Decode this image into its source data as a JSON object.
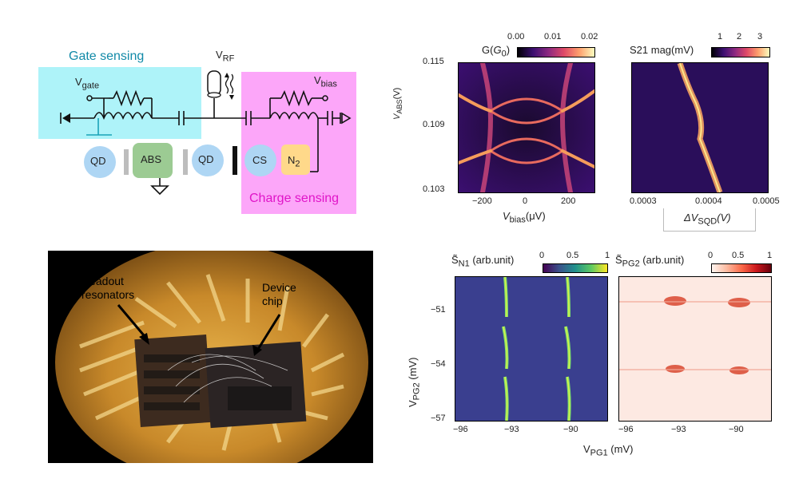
{
  "schematic": {
    "gate_sensing": "Gate sensing",
    "charge_sensing": "Charge sensing",
    "v_rf": "V",
    "v_rf_sub": "RF",
    "v_gate": "V",
    "v_gate_sub": "gate",
    "v_bias": "V",
    "v_bias_sub": "bias",
    "blocks": {
      "qd1": "QD",
      "abs": "ABS",
      "qd2": "QD",
      "cs": "CS",
      "n2": "N",
      "n2_sub": "2"
    },
    "colors": {
      "gate": "#aef3f9",
      "charge": "#fca6f9",
      "qd": "#aed6f4",
      "abs": "#9ccb93",
      "n2": "#ffd98a"
    }
  },
  "photo": {
    "label_readout": "Readout\nresonators",
    "label_device": "Device\nchip"
  },
  "plot_a": {
    "colorbar_label": "G(",
    "colorbar_label_g": "G",
    "colorbar_label_sub": "0",
    "colorbar_label_end": ")",
    "colorbar_ticks": [
      "0.00",
      "0.01",
      "0.02"
    ],
    "ylabel": "V",
    "ylabel_sub": "ABS",
    "ylabel_unit": "(V)",
    "xlabel": "V",
    "xlabel_sub": "bias",
    "xlabel_unit": "(μV)",
    "yticks": [
      "0.115",
      "0.109",
      "0.103"
    ],
    "xticks": [
      "−200",
      "0",
      "200"
    ]
  },
  "plot_b": {
    "colorbar_label": "S21 mag(mV)",
    "colorbar_ticks": [
      "1",
      "2",
      "3"
    ],
    "xlabel": "ΔV",
    "xlabel_sub": "SQD",
    "xlabel_unit": "(V)",
    "xticks": [
      "0.0003",
      "0.0004",
      "0.0005"
    ]
  },
  "plot_c": {
    "colorbar_label": "S̃",
    "colorbar_label_sub": "N1",
    "colorbar_label_unit": " (arb.unit)",
    "colorbar_ticks": [
      "0",
      "0.5",
      "1"
    ],
    "ylabel": "V",
    "ylabel_sub": "PG2",
    "ylabel_unit": " (mV)",
    "yticks": [
      "−51",
      "−54",
      "−57"
    ],
    "xticks": [
      "−96",
      "−93",
      "−90"
    ]
  },
  "plot_d": {
    "colorbar_label": "S̃",
    "colorbar_label_sub": "PG2",
    "colorbar_label_unit": " (arb.unit)",
    "colorbar_ticks": [
      "0",
      "0.5",
      "1"
    ],
    "xticks": [
      "−96",
      "−93",
      "−90"
    ]
  },
  "shared_xlabel": {
    "text": "V",
    "sub": "PG1",
    "unit": " (mV)"
  }
}
